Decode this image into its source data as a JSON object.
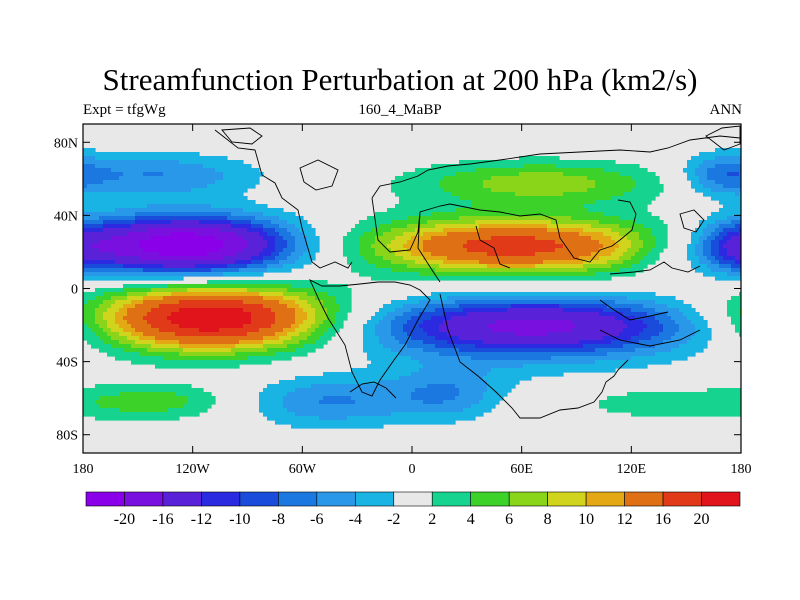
{
  "title": "Streamfunction Perturbation at 200 hPa (km2/s)",
  "subtitle_left": "Expt = tfgWg",
  "subtitle_center": "160_4_MaBP",
  "subtitle_right": "ANN",
  "map": {
    "lon_range": [
      -180,
      180
    ],
    "lat_range": [
      -90,
      90
    ],
    "x_ticks": [
      {
        "lon": -180,
        "label": "180"
      },
      {
        "lon": -120,
        "label": "120W"
      },
      {
        "lon": -60,
        "label": "60W"
      },
      {
        "lon": 0,
        "label": "0"
      },
      {
        "lon": 60,
        "label": "60E"
      },
      {
        "lon": 120,
        "label": "120E"
      },
      {
        "lon": 180,
        "label": "180"
      }
    ],
    "y_ticks": [
      {
        "lat": 80,
        "label": "80N"
      },
      {
        "lat": 40,
        "label": "40N"
      },
      {
        "lat": 0,
        "label": "0"
      },
      {
        "lat": -40,
        "label": "40S"
      },
      {
        "lat": -80,
        "label": "80S"
      }
    ]
  },
  "colorbar": {
    "labels": [
      "-20",
      "-16",
      "-12",
      "-10",
      "-8",
      "-6",
      "-4",
      "-2",
      "2",
      "4",
      "6",
      "8",
      "10",
      "12",
      "16",
      "20"
    ],
    "colors": [
      "#8a00e8",
      "#7a10e0",
      "#5a22d8",
      "#2c2ae0",
      "#1a4cdc",
      "#1a78e0",
      "#2a98e8",
      "#19b4e4",
      "#e8e8e8",
      "#16d490",
      "#3cd22a",
      "#8ad41a",
      "#d0d41c",
      "#e4a814",
      "#e07014",
      "#e03a18",
      "#e0141a"
    ]
  },
  "field_blobs": [
    {
      "lon": -125,
      "lat": 24,
      "rx": 58,
      "ry": 15,
      "v": -21
    },
    {
      "lon": -110,
      "lat": -16,
      "rx": 62,
      "ry": 17,
      "v": 21
    },
    {
      "lon": 55,
      "lat": 23,
      "rx": 78,
      "ry": 14,
      "v": 15
    },
    {
      "lon": 65,
      "lat": -20,
      "rx": 90,
      "ry": 15,
      "v": -15
    },
    {
      "lon": 70,
      "lat": 58,
      "rx": 70,
      "ry": 12,
      "v": 7
    },
    {
      "lon": -140,
      "lat": 62,
      "rx": 55,
      "ry": 12,
      "v": -6
    },
    {
      "lon": 170,
      "lat": 62,
      "rx": 22,
      "ry": 12,
      "v": -6
    },
    {
      "lon": 175,
      "lat": 22,
      "rx": 22,
      "ry": 14,
      "v": -7
    },
    {
      "lon": 135,
      "lat": 18,
      "rx": 18,
      "ry": 12,
      "v": -2.2
    },
    {
      "lon": -45,
      "lat": -62,
      "rx": 48,
      "ry": 14,
      "v": -6
    },
    {
      "lon": 20,
      "lat": -58,
      "rx": 30,
      "ry": 14,
      "v": -5
    },
    {
      "lon": -140,
      "lat": -62,
      "rx": 45,
      "ry": 10,
      "v": 5
    },
    {
      "lon": 130,
      "lat": -62,
      "rx": 60,
      "ry": 12,
      "v": 3
    },
    {
      "lon": -100,
      "lat": -18,
      "rx": 100,
      "ry": 22,
      "v": 3
    },
    {
      "lon": 55,
      "lat": -30,
      "rx": 110,
      "ry": 24,
      "v": -3
    },
    {
      "lon": 55,
      "lat": 25,
      "rx": 105,
      "ry": 22,
      "v": 3
    },
    {
      "lon": -125,
      "lat": 20,
      "rx": 82,
      "ry": 22,
      "v": -3
    }
  ]
}
